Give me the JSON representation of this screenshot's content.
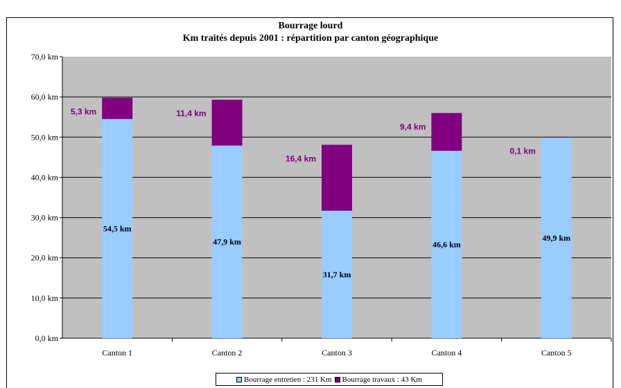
{
  "chart_data": {
    "type": "bar",
    "stacked": true,
    "title": "Bourrage lourd",
    "subtitle": "Km traités depuis 2001 : répartition par canton géographique",
    "categories": [
      "Canton 1",
      "Canton 2",
      "Canton 3",
      "Canton 4",
      "Canton 5"
    ],
    "series": [
      {
        "name": "Bourrage entretien : 231 Km",
        "color": "#99ccff",
        "values": [
          54.5,
          47.9,
          31.7,
          46.6,
          49.9
        ],
        "labels": [
          "54,5 km",
          "47,9 km",
          "31,7 km",
          "46,6 km",
          "49,9 km"
        ]
      },
      {
        "name": "Bourrage travaux : 43 Km",
        "color": "#800080",
        "values": [
          5.3,
          11.4,
          16.4,
          9.4,
          0.1
        ],
        "labels": [
          "5,3 km",
          "11,4 km",
          "16,4 km",
          "9,4 km",
          "0,1 km"
        ]
      }
    ],
    "yticks": [
      0,
      10,
      20,
      30,
      40,
      50,
      60,
      70
    ],
    "ytick_labels": [
      "0,0 km",
      "10,0 km",
      "20,0 km",
      "30,0 km",
      "40,0 km",
      "50,0 km",
      "60,0 km",
      "70,0 km"
    ],
    "ylim": [
      0,
      70
    ],
    "grid": true,
    "plot_background": "#c0c0c0",
    "legend_position": "bottom"
  }
}
